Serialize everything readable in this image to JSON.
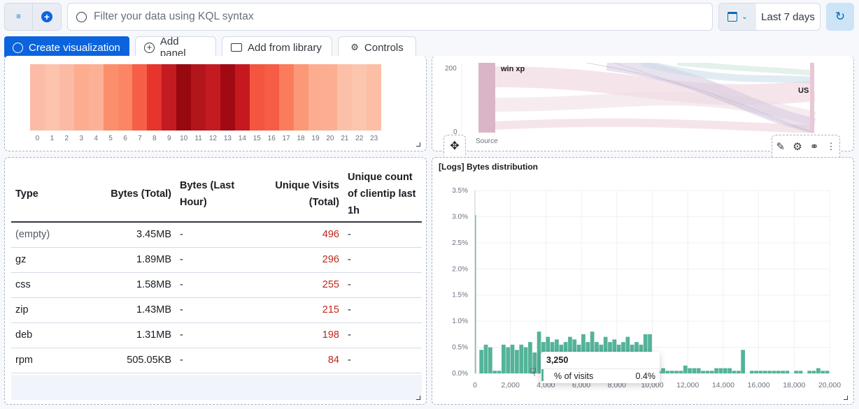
{
  "query": {
    "placeholder": "Filter your data using KQL syntax",
    "date_range": "Last 7 days"
  },
  "toolbar": {
    "create": "Create visualization",
    "add_panel": "Add panel",
    "add_library": "Add from library",
    "controls": "Controls"
  },
  "heatmap": {
    "x_labels": [
      "0",
      "1",
      "2",
      "3",
      "4",
      "5",
      "6",
      "7",
      "8",
      "9",
      "10",
      "11",
      "12",
      "13",
      "14",
      "15",
      "16",
      "17",
      "18",
      "19",
      "20",
      "21",
      "22",
      "23"
    ],
    "colors": [
      "#fcbba6",
      "#fcc3ad",
      "#fbbaa3",
      "#fcad90",
      "#fcb196",
      "#fb8f6d",
      "#fb8565",
      "#f65e48",
      "#e5352d",
      "#c41b22",
      "#98080f",
      "#b3151c",
      "#c41b22",
      "#a10a12",
      "#c5191f",
      "#f4553f",
      "#f65c46",
      "#fb7c5c",
      "#fa9878",
      "#fcad90",
      "#fcae92",
      "#fcc0a8",
      "#fcc5ae",
      "#fcbfa6"
    ]
  },
  "sankey": {
    "y_ticks": [
      "200",
      "0"
    ],
    "node_left": "win xp",
    "node_right": "US",
    "x_label": "Source"
  },
  "table": {
    "headers": [
      "Type",
      "Bytes (Total)",
      "Bytes (Last Hour)",
      "Unique Visits (Total)",
      "Unique count of clientip last 1h"
    ],
    "rows": [
      [
        "(empty)",
        "3.45MB",
        "-",
        "496",
        "-"
      ],
      [
        "gz",
        "1.89MB",
        "-",
        "296",
        "-"
      ],
      [
        "css",
        "1.58MB",
        "-",
        "255",
        "-"
      ],
      [
        "zip",
        "1.43MB",
        "-",
        "215",
        "-"
      ],
      [
        "deb",
        "1.31MB",
        "-",
        "198",
        "-"
      ],
      [
        "rpm",
        "505.05KB",
        "-",
        "84",
        "-"
      ]
    ]
  },
  "chart_data": {
    "type": "bar",
    "title": "[Logs] Bytes distribution",
    "color": "#54b399",
    "xlim": [
      0,
      20000
    ],
    "ylim": [
      0,
      3.5
    ],
    "bin_width": 250,
    "x_ticks": [
      "0",
      "2,000",
      "4,000",
      "6,000",
      "8,000",
      "10,000",
      "12,000",
      "14,000",
      "16,000",
      "18,000",
      "20,000"
    ],
    "y_ticks": [
      "0.0%",
      "0.5%",
      "1.0%",
      "1.5%",
      "2.0%",
      "2.5%",
      "3.0%",
      "3.5%"
    ],
    "values": [
      3.03,
      0.45,
      0.55,
      0.5,
      0.05,
      0.05,
      0.55,
      0.5,
      0.55,
      0.45,
      0.55,
      0.5,
      0.6,
      0.4,
      0.8,
      0.6,
      0.7,
      0.6,
      0.65,
      0.55,
      0.6,
      0.7,
      0.65,
      0.55,
      0.75,
      0.6,
      0.8,
      0.6,
      0.55,
      0.7,
      0.6,
      0.65,
      0.55,
      0.6,
      0.7,
      0.55,
      0.6,
      0.55,
      0.75,
      0.75,
      0.05,
      0.05,
      0.1,
      0.05,
      0.05,
      0.05,
      0.05,
      0.15,
      0.1,
      0.1,
      0.1,
      0.05,
      0.05,
      0.05,
      0.1,
      0.1,
      0.1,
      0.1,
      0.05,
      0.05,
      0.45,
      0,
      0.05,
      0.05,
      0.05,
      0.05,
      0.05,
      0.05,
      0.05,
      0.05,
      0.05,
      0,
      0.05,
      0.05,
      0,
      0.05,
      0.05,
      0.1,
      0.05,
      0.05
    ],
    "tooltip": {
      "title": "3,250",
      "label": "% of visits",
      "value": "0.4%"
    }
  }
}
